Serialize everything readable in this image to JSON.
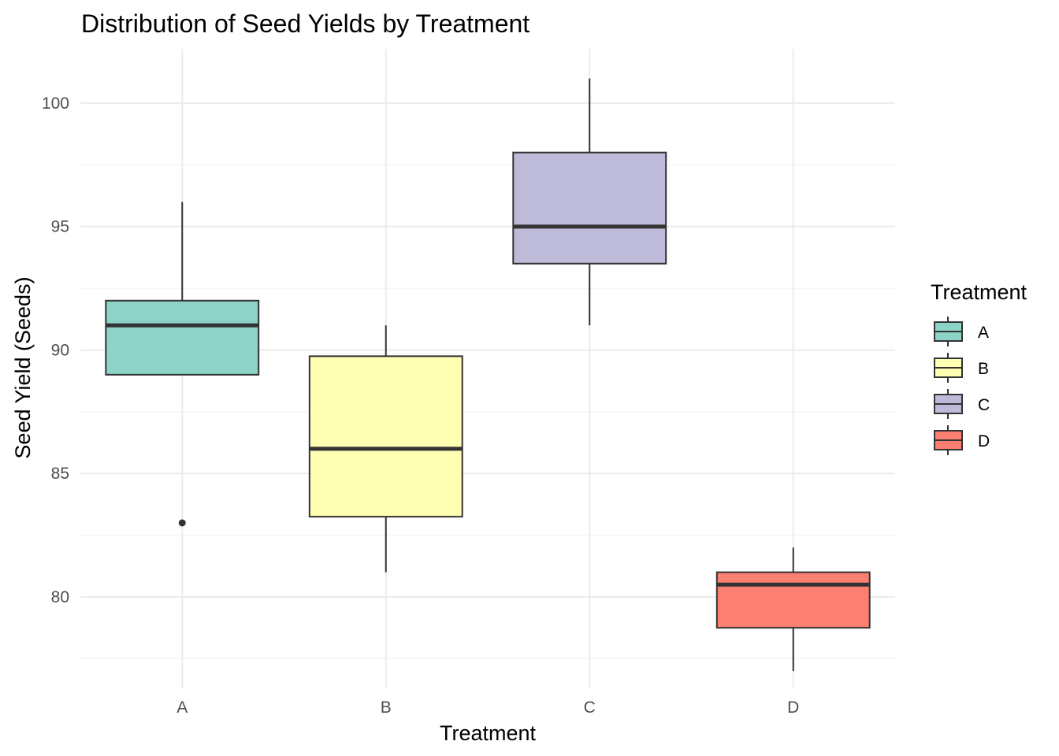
{
  "chart_data": {
    "type": "boxplot",
    "title": "Distribution of Seed Yields by Treatment",
    "xlabel": "Treatment",
    "ylabel": "Seed Yield (Seeds)",
    "categories": [
      "A",
      "B",
      "C",
      "D"
    ],
    "ylim": [
      76.3,
      102.2
    ],
    "y_ticks": [
      80,
      85,
      90,
      95,
      100
    ],
    "grid": true,
    "boxes": [
      {
        "category": "A",
        "min": 89,
        "q1": 89,
        "median": 91,
        "q3": 92,
        "max": 96,
        "outliers": [
          83
        ],
        "color": "#8DD3C7"
      },
      {
        "category": "B",
        "min": 81,
        "q1": 83.25,
        "median": 86,
        "q3": 89.75,
        "max": 91,
        "outliers": [],
        "color": "#FFFFB3"
      },
      {
        "category": "C",
        "min": 91,
        "q1": 93.5,
        "median": 95,
        "q3": 98,
        "max": 101,
        "outliers": [],
        "color": "#BEBADA"
      },
      {
        "category": "D",
        "min": 77,
        "q1": 78.75,
        "median": 80.5,
        "q3": 81,
        "max": 82,
        "outliers": [],
        "color": "#FB8072"
      }
    ],
    "legend": {
      "title": "Treatment",
      "position": "right",
      "entries": [
        {
          "label": "A",
          "color": "#8DD3C7"
        },
        {
          "label": "B",
          "color": "#FFFFB3"
        },
        {
          "label": "C",
          "color": "#BEBADA"
        },
        {
          "label": "D",
          "color": "#FB8072"
        }
      ]
    }
  }
}
